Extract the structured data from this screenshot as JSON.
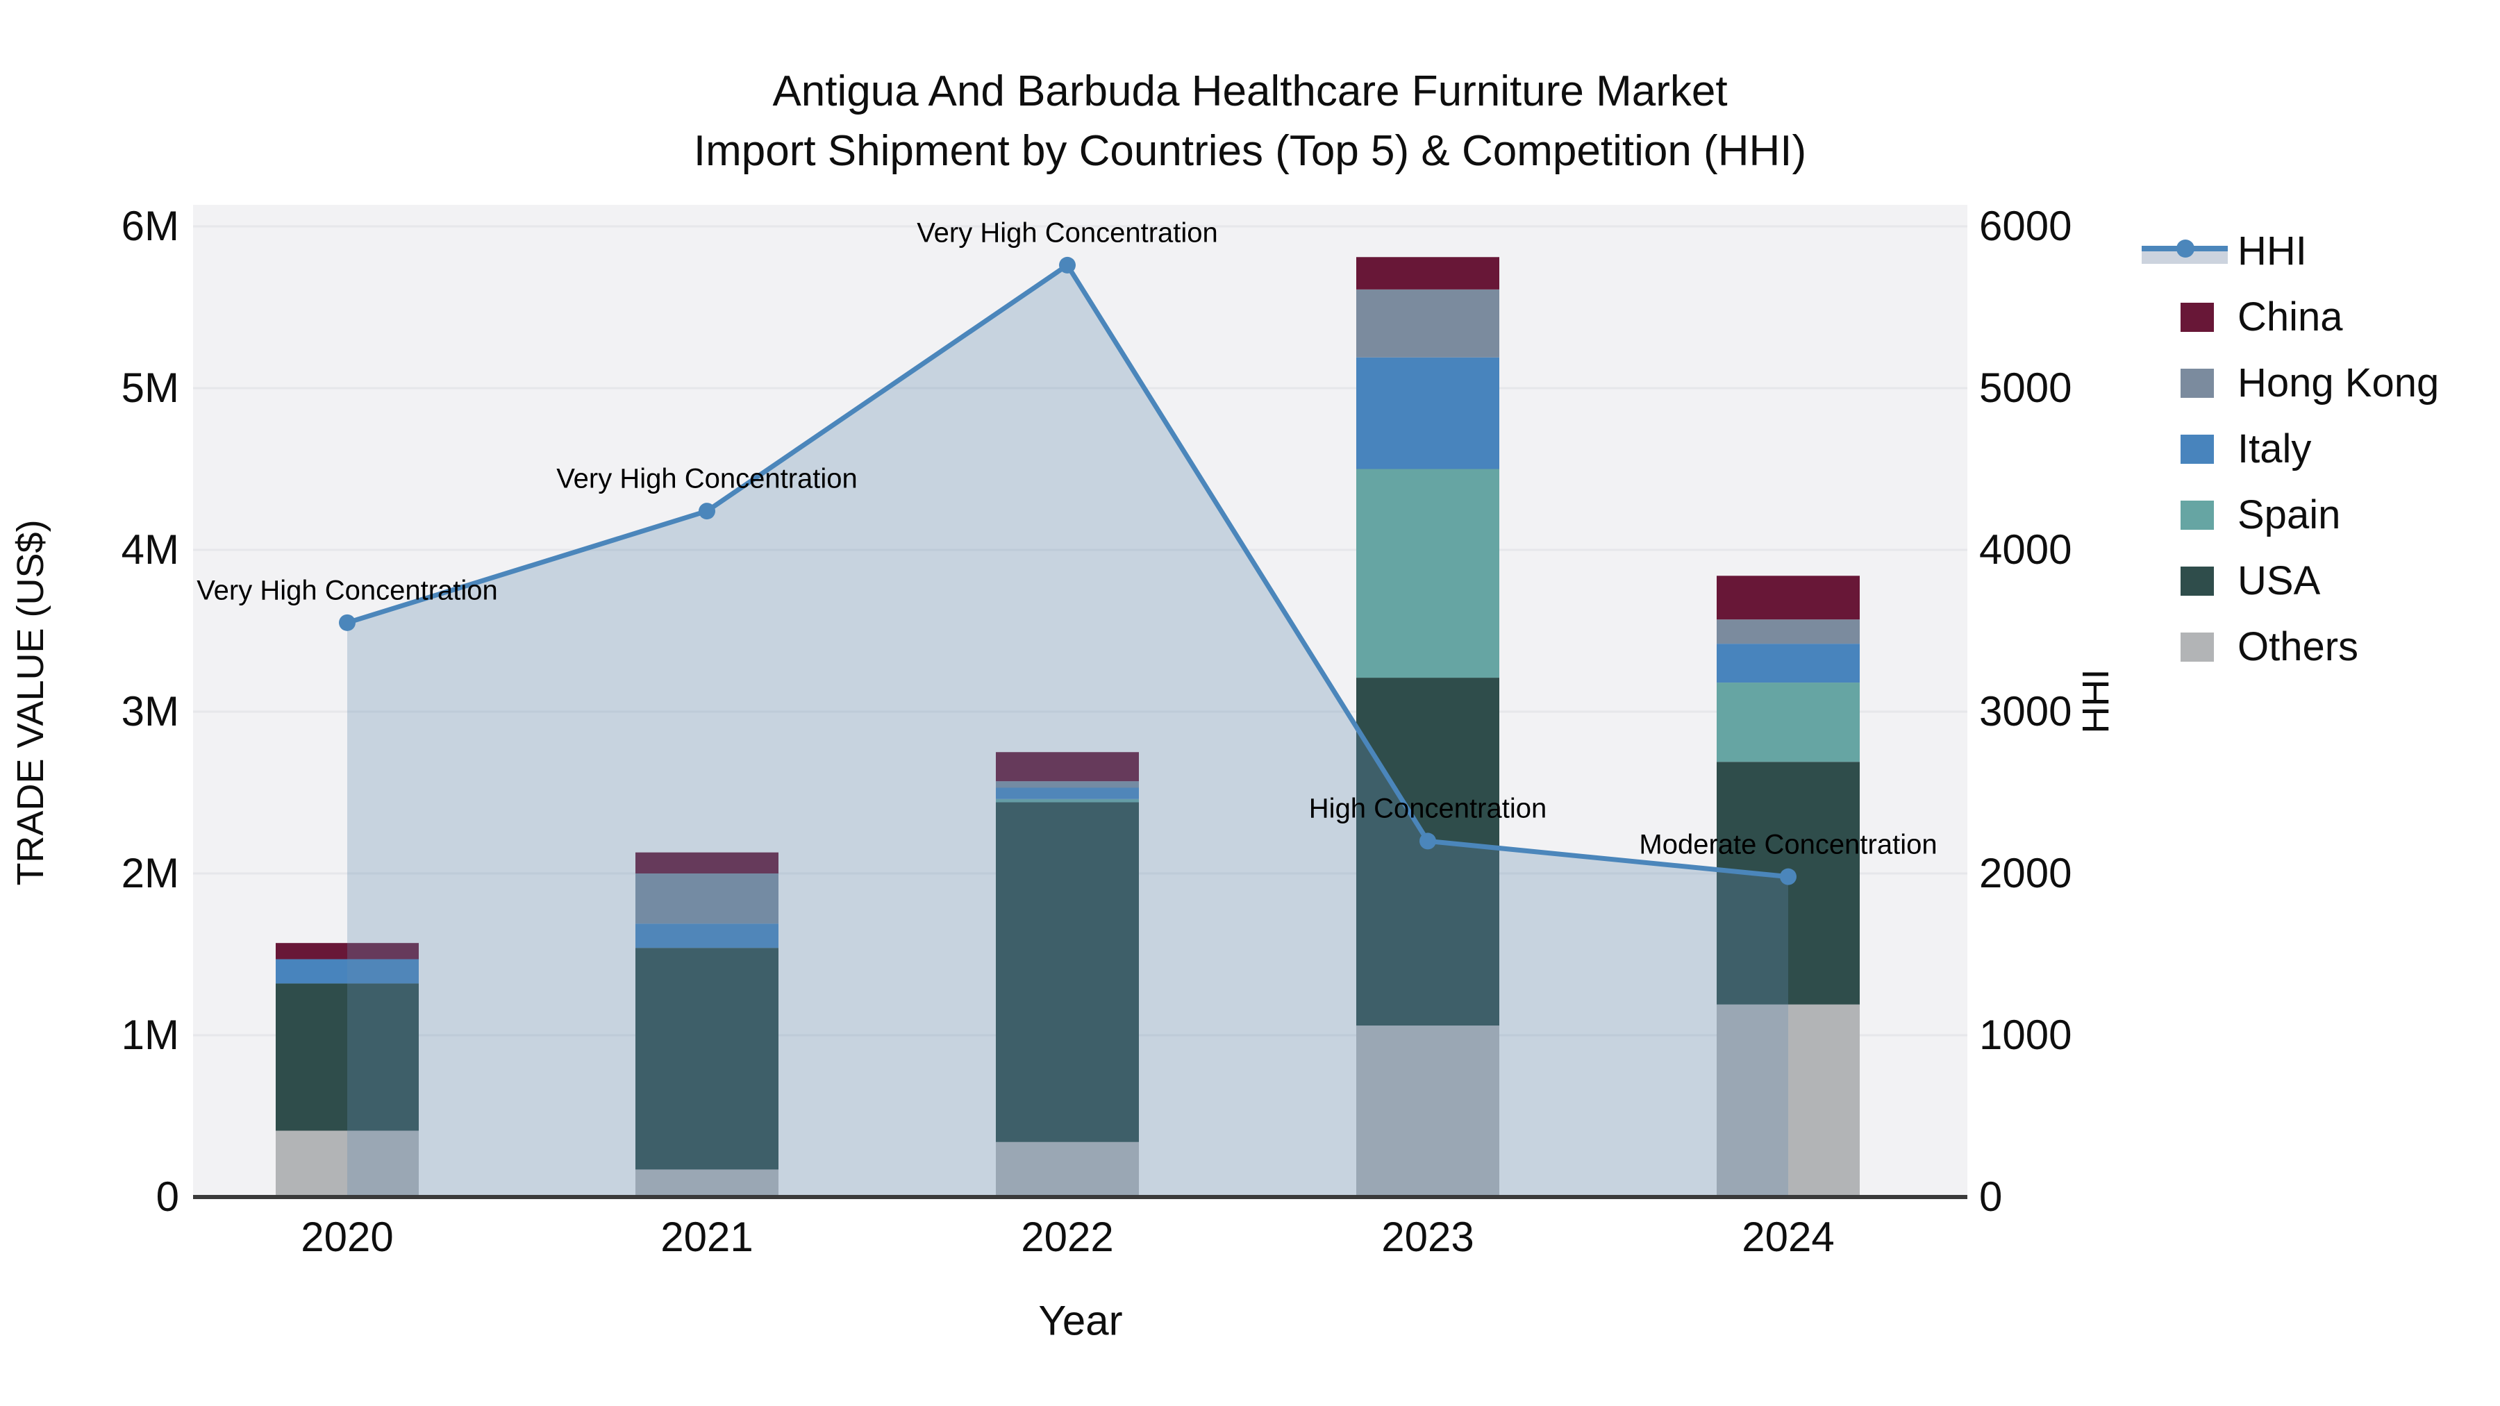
{
  "title": {
    "line1": "Antigua And Barbuda Healthcare Furniture Market",
    "line2": "Import Shipment by Countries (Top 5) & Competition (HHI)"
  },
  "axes": {
    "x": {
      "title": "Year",
      "ticks": [
        "2020",
        "2021",
        "2022",
        "2023",
        "2024"
      ]
    },
    "y_left": {
      "title": "TRADE VALUE (US$)",
      "ticks": [
        "0",
        "1M",
        "2M",
        "3M",
        "4M",
        "5M",
        "6M"
      ]
    },
    "y_right": {
      "title": "HHI",
      "ticks": [
        "0",
        "1000",
        "2000",
        "3000",
        "4000",
        "5000",
        "6000"
      ]
    }
  },
  "legend": {
    "items": [
      {
        "label": "HHI",
        "type": "line",
        "color": "#4b86bb"
      },
      {
        "label": "China",
        "type": "square",
        "color": "#681737"
      },
      {
        "label": "Hong Kong",
        "type": "square",
        "color": "#7b8b9e"
      },
      {
        "label": "Italy",
        "type": "square",
        "color": "#4884bd"
      },
      {
        "label": "Spain",
        "type": "square",
        "color": "#66a5a3"
      },
      {
        "label": "USA",
        "type": "square",
        "color": "#2f4d4b"
      },
      {
        "label": "Others",
        "type": "square",
        "color": "#b2b4b6"
      }
    ]
  },
  "chart_data": {
    "type": "combo: stacked-bar (left axis) + line-area (right axis)",
    "title": "Antigua And Barbuda Healthcare Furniture Market Import Shipment by Countries (Top 5) & Competition (HHI)",
    "categories": [
      "2020",
      "2021",
      "2022",
      "2023",
      "2024"
    ],
    "bar_value_unit": "million US$",
    "series": [
      {
        "name": "China",
        "color": "#681737",
        "values_musd": [
          0.1,
          0.13,
          0.18,
          0.2,
          0.27
        ]
      },
      {
        "name": "Hong Kong",
        "color": "#7b8b9e",
        "values_musd": [
          0.0,
          0.31,
          0.04,
          0.42,
          0.15
        ]
      },
      {
        "name": "Italy",
        "color": "#4884bd",
        "values_musd": [
          0.15,
          0.15,
          0.07,
          0.69,
          0.24
        ]
      },
      {
        "name": "Spain",
        "color": "#66a5a3",
        "values_musd": [
          0.0,
          0.0,
          0.02,
          1.29,
          0.49
        ]
      },
      {
        "name": "USA",
        "color": "#2f4d4b",
        "values_musd": [
          0.91,
          1.37,
          2.1,
          2.15,
          1.5
        ]
      },
      {
        "name": "Others",
        "color": "#b2b4b6",
        "values_musd": [
          0.41,
          0.17,
          0.34,
          1.06,
          1.19
        ]
      }
    ],
    "stack_order_bottom_to_top": [
      "Others",
      "USA",
      "Spain",
      "Italy",
      "Hong Kong",
      "China"
    ],
    "bar_totals_musd": [
      1.57,
      2.13,
      2.75,
      5.81,
      3.84
    ],
    "hhi_line": {
      "name": "HHI",
      "axis": "right",
      "values": [
        3550,
        4240,
        5760,
        2200,
        1980
      ]
    },
    "annotations": [
      {
        "category": "2020",
        "text": "Very High Concentration"
      },
      {
        "category": "2021",
        "text": "Very High Concentration"
      },
      {
        "category": "2022",
        "text": "Very High Concentration"
      },
      {
        "category": "2023",
        "text": "High Concentration"
      },
      {
        "category": "2024",
        "text": "Moderate Concentration"
      }
    ],
    "xlabel": "Year",
    "ylabel_left": "TRADE VALUE (US$)",
    "ylabel_right": "HHI",
    "ylim_left": [
      0,
      6000000
    ],
    "ylim_right": [
      0,
      6000
    ],
    "grid": true,
    "legend_position": "right"
  },
  "colors": {
    "hhi_line": "#4b86bb",
    "hhi_area_fill": "#648CAF",
    "hhi_area_opacity": "0.30",
    "plot_background": "#f2f2f4",
    "gridline": "#e6e7ea",
    "x_axis_line": "#3a3a3a",
    "legend_hhi_band": "#ccd3de"
  }
}
